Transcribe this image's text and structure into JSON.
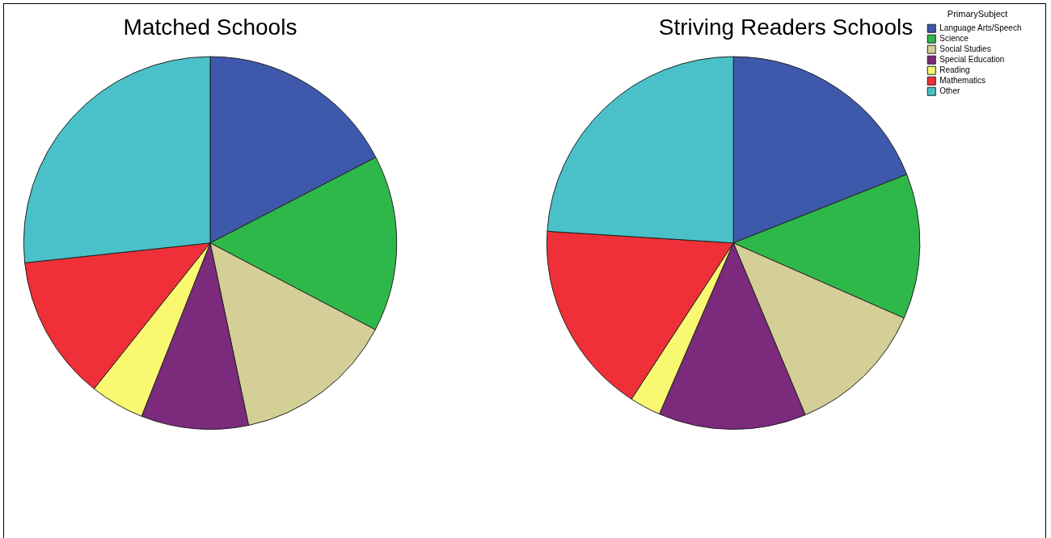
{
  "chart_data": [
    {
      "type": "pie",
      "title": "Matched Schools",
      "categories": [
        null,
        null,
        null,
        null,
        null,
        null,
        null
      ],
      "values": [
        17.4,
        15.3,
        14.0,
        9.3,
        4.7,
        12.6,
        26.7
      ],
      "colors": [
        "#3e58ac",
        "#2fb84a",
        "#d4ce97",
        "#7b2a7c",
        "#f9f871",
        "#ef3038",
        "#4ac1c8"
      ],
      "legend": false
    },
    {
      "type": "pie",
      "title": "Striving Readers Schools",
      "categories": [
        "Language Arts/Speech",
        "Science",
        "Social Studies",
        "Special Education",
        "Reading",
        "Mathematics",
        "Other"
      ],
      "values": [
        19.0,
        12.6,
        12.1,
        12.8,
        2.7,
        16.8,
        24.0
      ],
      "colors": [
        "#3e58ac",
        "#2fb84a",
        "#d4ce97",
        "#7b2a7c",
        "#f9f871",
        "#ef3038",
        "#4ac1c8"
      ],
      "legend": "top right",
      "legend_title": "PrimarySubject"
    }
  ]
}
